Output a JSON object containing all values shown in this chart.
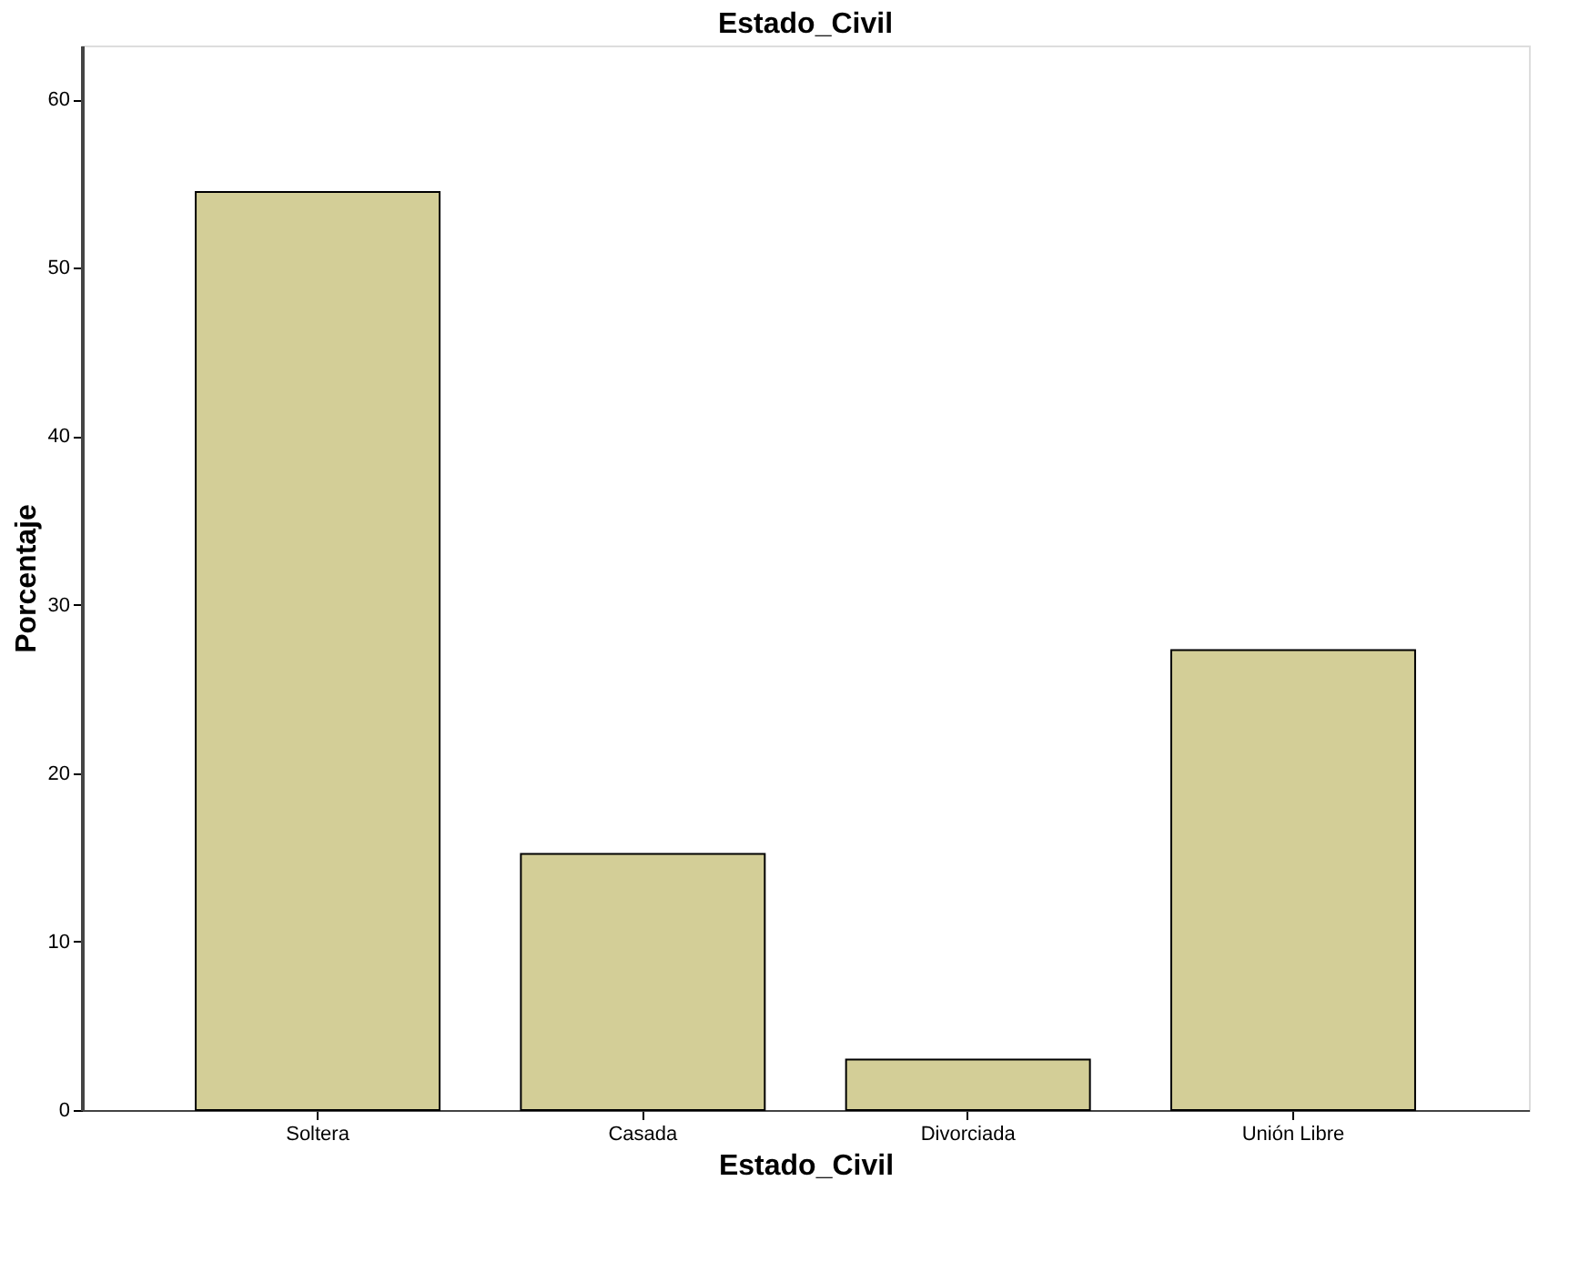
{
  "chart_data": {
    "type": "bar",
    "title": "Estado_Civil",
    "xlabel": "Estado_Civil",
    "ylabel": "Porcentaje",
    "categories": [
      "Soltera",
      "Casada",
      "Divorciada",
      "Unión Libre"
    ],
    "values": [
      54.5,
      15.2,
      3.0,
      27.3
    ],
    "color": "#d3ce97",
    "ylim": [
      0,
      63.2
    ],
    "yticks": [
      0,
      10,
      20,
      30,
      40,
      50,
      60
    ],
    "grid": false
  }
}
